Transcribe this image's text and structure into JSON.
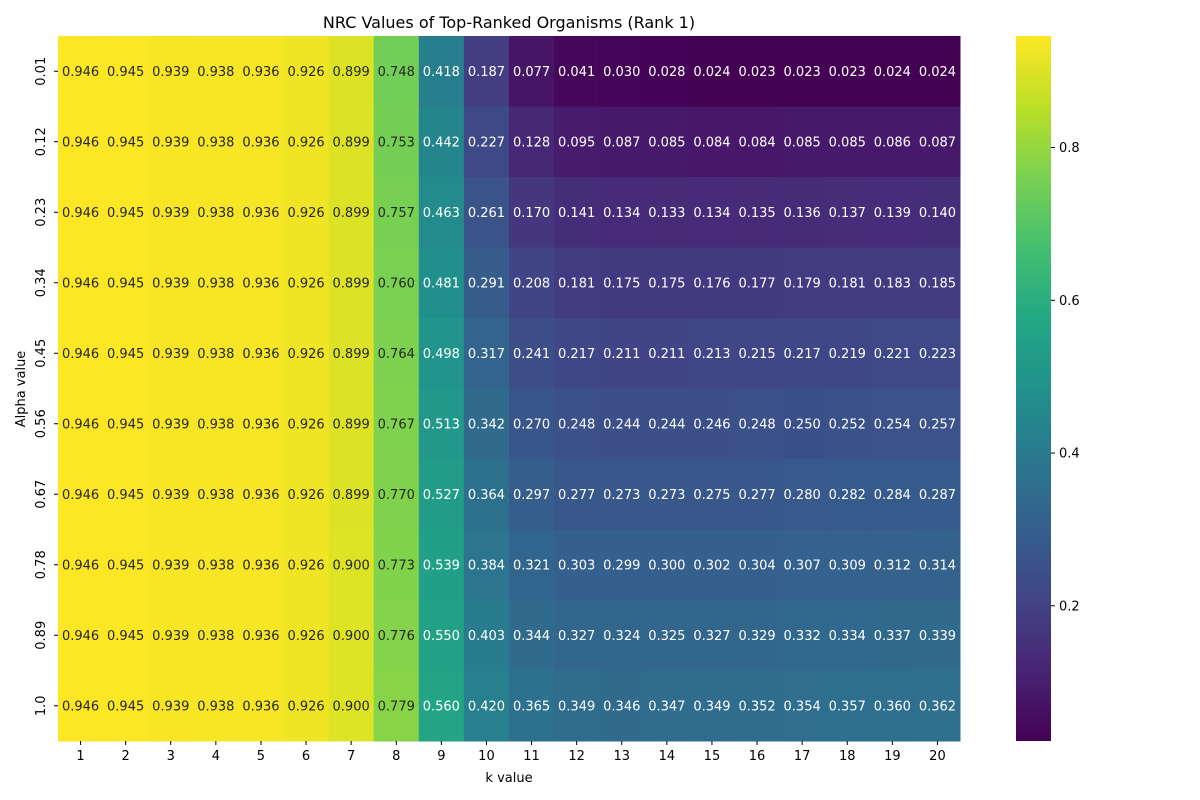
{
  "chart_data": {
    "type": "heatmap",
    "title": "NRC Values of Top-Ranked Organisms (Rank 1)",
    "xlabel": "k value",
    "ylabel": "Alpha value",
    "x": [
      "1",
      "2",
      "3",
      "4",
      "5",
      "6",
      "7",
      "8",
      "9",
      "10",
      "11",
      "12",
      "13",
      "14",
      "15",
      "16",
      "17",
      "18",
      "19",
      "20"
    ],
    "y": [
      "0.01",
      "0.12",
      "0.23",
      "0.34",
      "0.45",
      "0.56",
      "0.67",
      "0.78",
      "0.89",
      "1.0"
    ],
    "values": [
      [
        0.946,
        0.945,
        0.939,
        0.938,
        0.936,
        0.926,
        0.899,
        0.748,
        0.418,
        0.187,
        0.077,
        0.041,
        0.03,
        0.028,
        0.024,
        0.023,
        0.023,
        0.023,
        0.024,
        0.024
      ],
      [
        0.946,
        0.945,
        0.939,
        0.938,
        0.936,
        0.926,
        0.899,
        0.753,
        0.442,
        0.227,
        0.128,
        0.095,
        0.087,
        0.085,
        0.084,
        0.084,
        0.085,
        0.085,
        0.086,
        0.087
      ],
      [
        0.946,
        0.945,
        0.939,
        0.938,
        0.936,
        0.926,
        0.899,
        0.757,
        0.463,
        0.261,
        0.17,
        0.141,
        0.134,
        0.133,
        0.134,
        0.135,
        0.136,
        0.137,
        0.139,
        0.14
      ],
      [
        0.946,
        0.945,
        0.939,
        0.938,
        0.936,
        0.926,
        0.899,
        0.76,
        0.481,
        0.291,
        0.208,
        0.181,
        0.175,
        0.175,
        0.176,
        0.177,
        0.179,
        0.181,
        0.183,
        0.185
      ],
      [
        0.946,
        0.945,
        0.939,
        0.938,
        0.936,
        0.926,
        0.899,
        0.764,
        0.498,
        0.317,
        0.241,
        0.217,
        0.211,
        0.211,
        0.213,
        0.215,
        0.217,
        0.219,
        0.221,
        0.223
      ],
      [
        0.946,
        0.945,
        0.939,
        0.938,
        0.936,
        0.926,
        0.899,
        0.767,
        0.513,
        0.342,
        0.27,
        0.248,
        0.244,
        0.244,
        0.246,
        0.248,
        0.25,
        0.252,
        0.254,
        0.257
      ],
      [
        0.946,
        0.945,
        0.939,
        0.938,
        0.936,
        0.926,
        0.899,
        0.77,
        0.527,
        0.364,
        0.297,
        0.277,
        0.273,
        0.273,
        0.275,
        0.277,
        0.28,
        0.282,
        0.284,
        0.287
      ],
      [
        0.946,
        0.945,
        0.939,
        0.938,
        0.936,
        0.926,
        0.9,
        0.773,
        0.539,
        0.384,
        0.321,
        0.303,
        0.299,
        0.3,
        0.302,
        0.304,
        0.307,
        0.309,
        0.312,
        0.314
      ],
      [
        0.946,
        0.945,
        0.939,
        0.938,
        0.936,
        0.926,
        0.9,
        0.776,
        0.55,
        0.403,
        0.344,
        0.327,
        0.324,
        0.325,
        0.327,
        0.329,
        0.332,
        0.334,
        0.337,
        0.339
      ],
      [
        0.946,
        0.945,
        0.939,
        0.938,
        0.936,
        0.926,
        0.9,
        0.779,
        0.56,
        0.42,
        0.365,
        0.349,
        0.346,
        0.347,
        0.349,
        0.352,
        0.354,
        0.357,
        0.36,
        0.362
      ]
    ],
    "colorscale": "viridis",
    "colorbar": {
      "range": [
        0.023,
        0.946
      ],
      "ticks": [
        "0.2",
        "0.4",
        "0.6",
        "0.8"
      ]
    },
    "annotations": "cell values shown with 3 decimals",
    "grid": false,
    "legend": "colorbar right"
  }
}
